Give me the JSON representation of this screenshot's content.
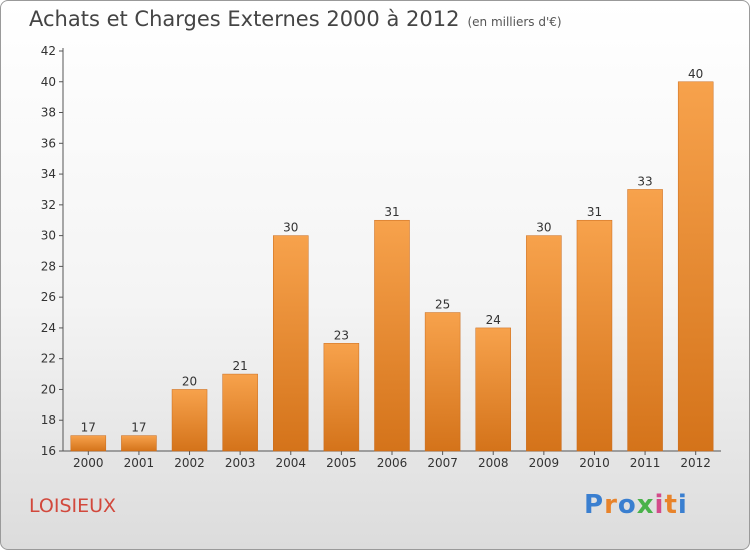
{
  "header": {
    "title": "Achats et Charges Externes 2000 à 2012",
    "unit": "(en milliers d'€)"
  },
  "footer": {
    "commune": "LOISIEUX",
    "logo_letters": [
      "P",
      "r",
      "o",
      "x",
      "i",
      "t",
      "i"
    ],
    "logo_colors": [
      "#3a7fd0",
      "#e8832a",
      "#3a7fd0",
      "#49b24a",
      "#d34a8a",
      "#e8832a",
      "#3a7fd0"
    ]
  },
  "chart_data": {
    "type": "bar",
    "categories": [
      "2000",
      "2001",
      "2002",
      "2003",
      "2004",
      "2005",
      "2006",
      "2007",
      "2008",
      "2009",
      "2010",
      "2011",
      "2012"
    ],
    "values": [
      17,
      17,
      20,
      21,
      30,
      23,
      31,
      25,
      24,
      30,
      31,
      33,
      40
    ],
    "data_labels": [
      "17",
      "17",
      "20",
      "21",
      "30",
      "23",
      "31",
      "25",
      "24",
      "30",
      "31",
      "33",
      "40"
    ],
    "y_ticks": [
      16,
      18,
      20,
      22,
      24,
      26,
      28,
      30,
      32,
      34,
      36,
      38,
      40,
      42
    ],
    "ylim": [
      16,
      42
    ],
    "bar_color_top": "#f7a24c",
    "bar_color_bottom": "#d4731a",
    "grid": false
  }
}
